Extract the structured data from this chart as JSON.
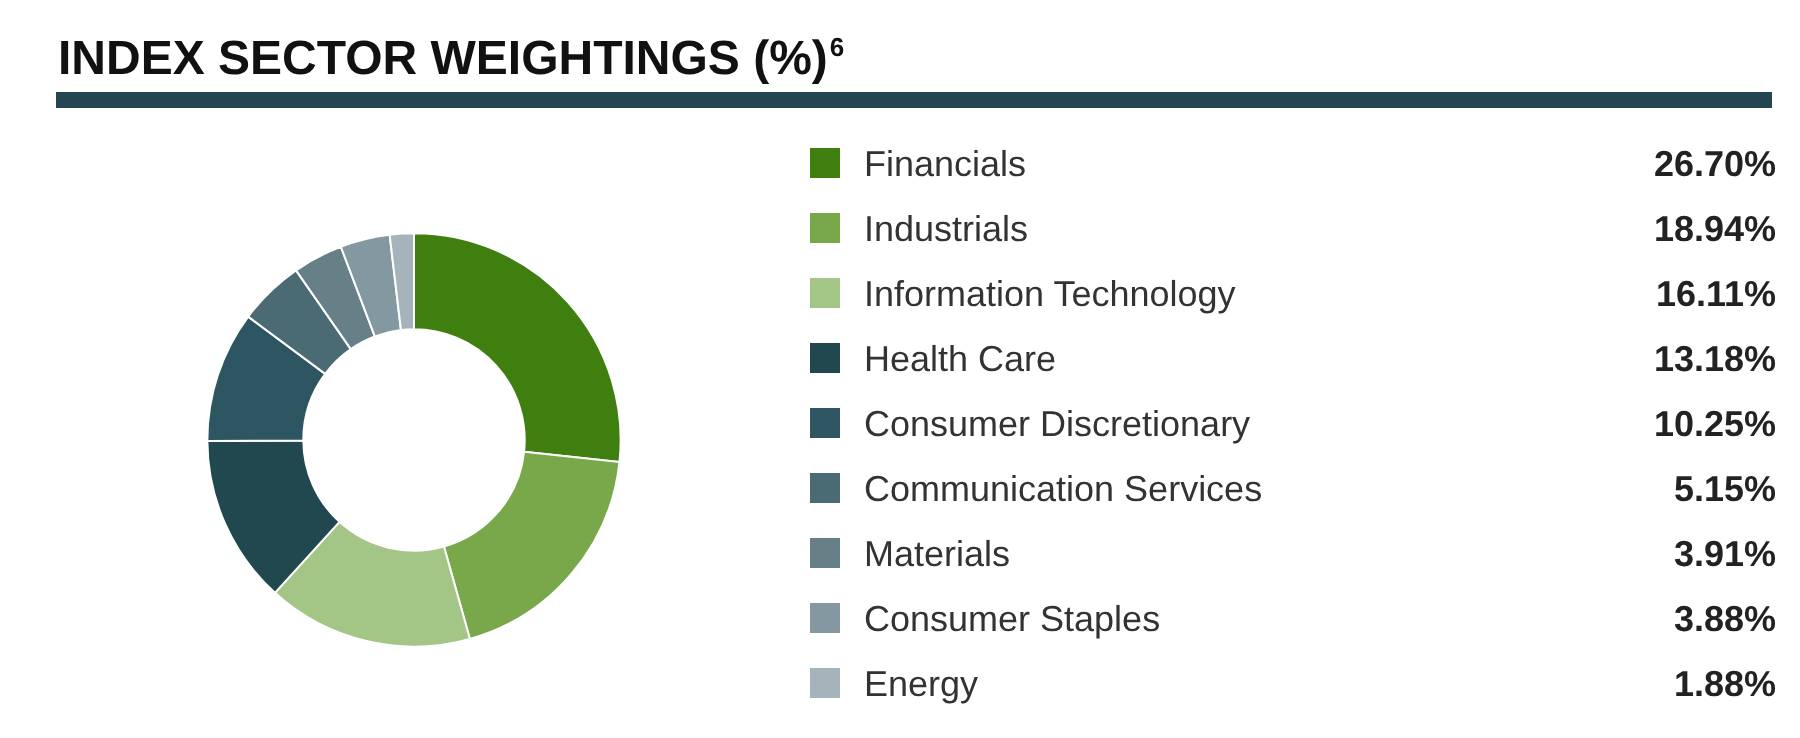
{
  "chart_data": {
    "type": "donut",
    "title": "INDEX SECTOR WEIGHTINGS (%)$^{6}$",
    "categories": [
      "Financials",
      "Industrials",
      "Information Technology",
      "Health Care",
      "Consumer Discretionary",
      "Communication Services",
      "Materials",
      "Consumer Staples",
      "Energy"
    ],
    "values": [
      26.7,
      18.94,
      16.11,
      13.18,
      10.25,
      5.15,
      3.91,
      3.88,
      1.88
    ],
    "value_labels": [
      "26.70%",
      "18.94%",
      "16.11%",
      "13.18%",
      "10.25%",
      "5.15%",
      "3.91%",
      "3.88%",
      "1.88%"
    ],
    "colors": [
      "#3f7f0f",
      "#78a84a",
      "#a3c585",
      "#21474f",
      "#2e5562",
      "#4a6a74",
      "#677f87",
      "#8498a1",
      "#a5b4bb"
    ],
    "legend": "right"
  }
}
